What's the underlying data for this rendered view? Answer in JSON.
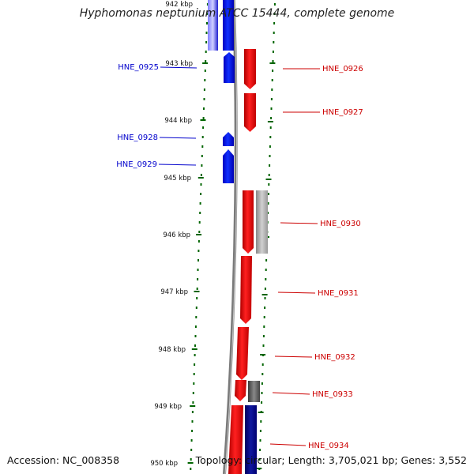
{
  "title": "Hyphomonas neptunium ATCC 15444, complete genome",
  "accession": "Accession: NC_008358",
  "topology": "Topology: circular; Length: 3,705,021 bp; Genes: 3,552",
  "ticks": [
    {
      "label": "942 kbp",
      "clipped": true
    },
    {
      "label": "943 kbp"
    },
    {
      "label": "944 kbp"
    },
    {
      "label": "945 kbp"
    },
    {
      "label": "946 kbp"
    },
    {
      "label": "947 kbp"
    },
    {
      "label": "948 kbp"
    },
    {
      "label": "949 kbp"
    },
    {
      "label": "950 kbp"
    }
  ],
  "genes_left": [
    "HNE_0925",
    "HNE_0928",
    "HNE_0929"
  ],
  "genes_right": [
    "HNE_0926",
    "HNE_0927",
    "HNE_0930",
    "HNE_0931",
    "HNE_0932",
    "HNE_0933",
    "HNE_0934"
  ],
  "colors": {
    "forward": "#ff0000",
    "reverse": "#0000ff",
    "reverse_dark": "#000080",
    "gray": "#a0a0a0",
    "dark_gray": "#606060",
    "tick": "#006400",
    "backbone": "#808080",
    "left_label": "#0000cc",
    "right_label": "#cc0000"
  }
}
